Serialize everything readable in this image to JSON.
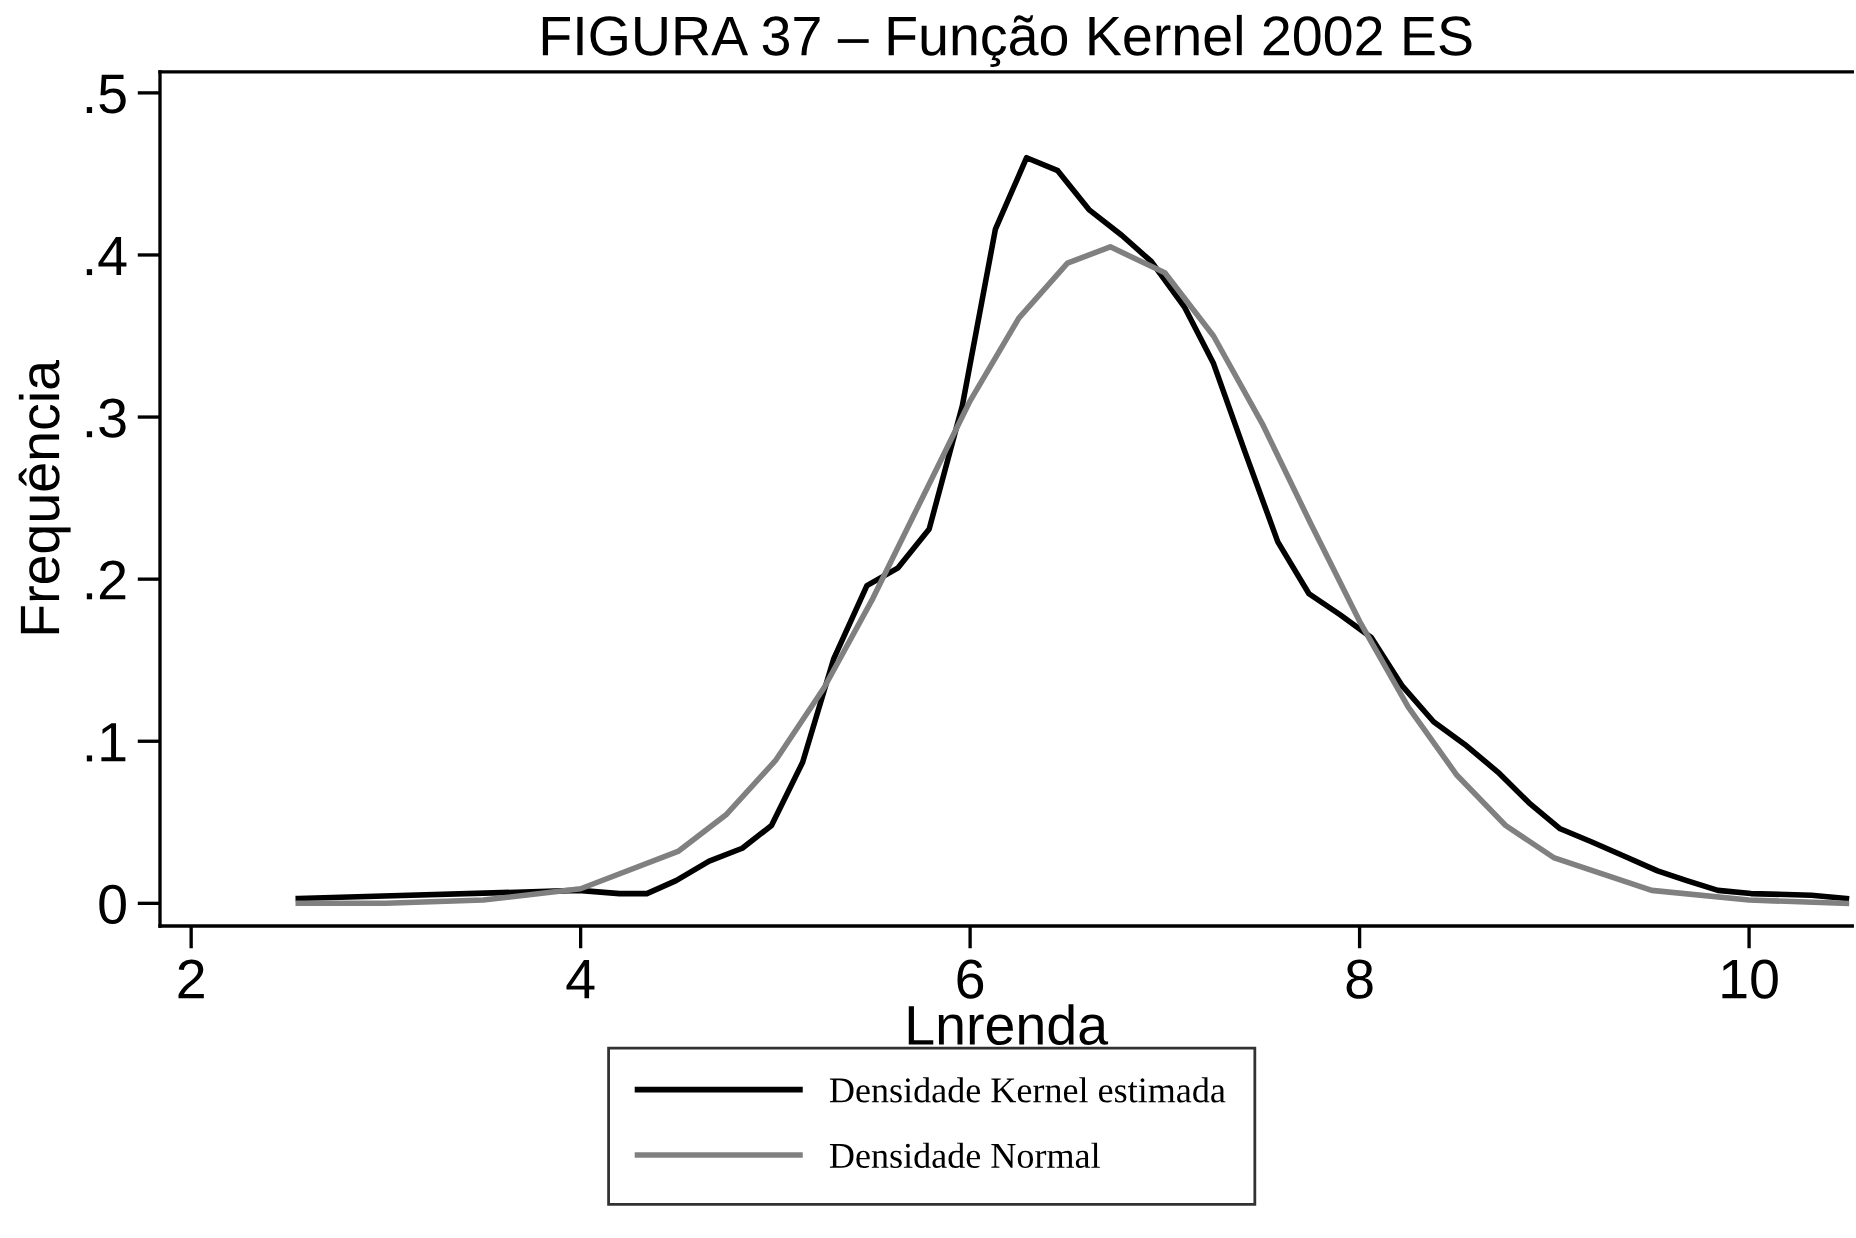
{
  "chart_data": {
    "type": "line",
    "title": "FIGURA 37 – Função Kernel 2002 ES",
    "xlabel": "Lnrenda",
    "ylabel": "Frequência",
    "xlim": [
      1.84,
      10.53
    ],
    "xticks": [
      2,
      4,
      6,
      8,
      10
    ],
    "ylim": [
      -0.014,
      0.513
    ],
    "yticks": [
      0,
      {
        "value": 0.1,
        "label": ".1"
      },
      {
        "value": 0.2,
        "label": ".2"
      },
      {
        "value": 0.3,
        "label": ".3"
      },
      {
        "value": 0.4,
        "label": ".4"
      },
      {
        "value": 0.5,
        "label": ".5"
      }
    ],
    "grid": false,
    "legend": "bottom",
    "marker": "none",
    "line_style": "solid",
    "series": [
      {
        "name": "Densidade Kernel estimada",
        "color": "#000000",
        "x": [
          2.55,
          3.99,
          4.2,
          4.34,
          4.49,
          4.66,
          4.83,
          4.98,
          5.14,
          5.3,
          5.47,
          5.63,
          5.79,
          5.96,
          6.13,
          6.29,
          6.45,
          6.61,
          6.78,
          6.93,
          7.1,
          7.25,
          7.41,
          7.58,
          7.74,
          7.9,
          8.06,
          8.22,
          8.38,
          8.54,
          8.71,
          8.87,
          9.03,
          9.19,
          9.36,
          9.53,
          9.68,
          9.84,
          10.01,
          10.32,
          10.5
        ],
        "values": [
          0.003,
          0.008,
          0.006,
          0.006,
          0.014,
          0.026,
          0.034,
          0.048,
          0.087,
          0.151,
          0.196,
          0.207,
          0.231,
          0.307,
          0.416,
          0.46,
          0.452,
          0.428,
          0.412,
          0.396,
          0.368,
          0.333,
          0.279,
          0.223,
          0.191,
          0.178,
          0.164,
          0.134,
          0.112,
          0.098,
          0.081,
          0.062,
          0.046,
          0.038,
          0.029,
          0.02,
          0.014,
          0.008,
          0.006,
          0.005,
          0.003
        ]
      },
      {
        "name": "Densidade Normal",
        "color": "#808080",
        "x": [
          2.55,
          3.0,
          3.5,
          4.0,
          4.5,
          4.75,
          5.0,
          5.25,
          5.5,
          5.75,
          6.0,
          6.25,
          6.5,
          6.72,
          7.0,
          7.25,
          7.5,
          7.75,
          8.0,
          8.25,
          8.5,
          8.75,
          9.0,
          9.5,
          10.0,
          10.5
        ],
        "values": [
          0.0,
          0.0,
          0.002,
          0.009,
          0.032,
          0.055,
          0.088,
          0.133,
          0.188,
          0.249,
          0.31,
          0.361,
          0.395,
          0.405,
          0.389,
          0.35,
          0.296,
          0.234,
          0.174,
          0.121,
          0.079,
          0.048,
          0.028,
          0.008,
          0.002,
          0.0
        ]
      }
    ]
  }
}
